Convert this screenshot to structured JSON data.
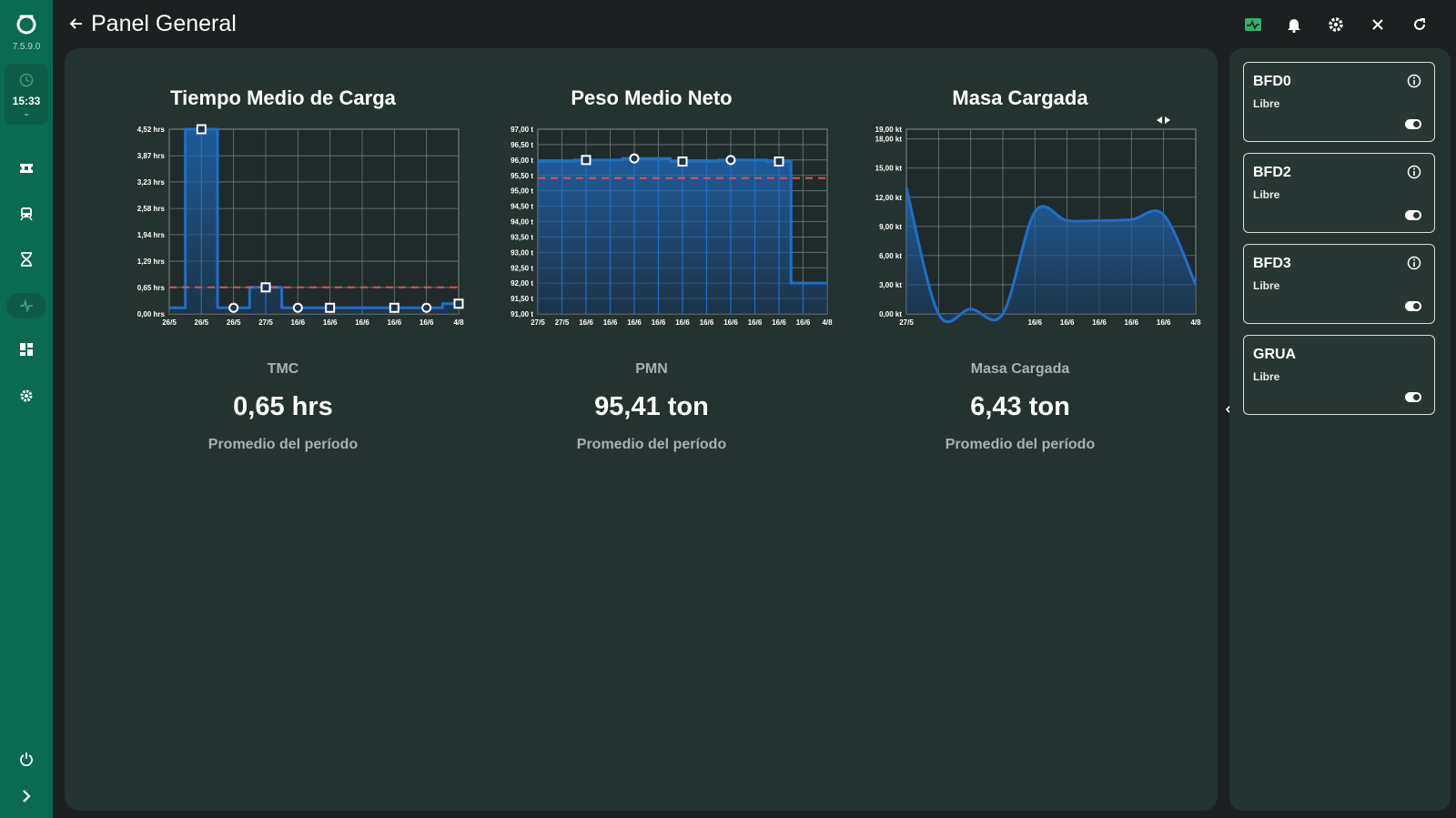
{
  "app": {
    "version": "7.5.9.0",
    "clock": "15:33"
  },
  "header": {
    "title": "Panel General"
  },
  "colors": {
    "sidebar": "#0a6b52",
    "panel": "#243230",
    "series": "#1e6fc8",
    "target": "#e05050"
  },
  "sidebar_icons": [
    "logo-icon",
    "clock-icon",
    "ticket-icon",
    "train-icon",
    "hourglass-icon",
    "activity-icon",
    "dashboard-icon",
    "settings-icon",
    "power-icon",
    "chevron-right-icon"
  ],
  "header_icons": [
    "monitor-chart-icon",
    "bell-icon",
    "settings-icon",
    "close-icon",
    "refresh-icon"
  ],
  "charts": [
    {
      "title": "Tiempo Medio de Carga",
      "kpi_label": "TMC",
      "kpi_value": "0,65 hrs",
      "kpi_sub": "Promedio del período"
    },
    {
      "title": "Peso Medio Neto",
      "kpi_label": "PMN",
      "kpi_value": "95,41 ton",
      "kpi_sub": "Promedio del período"
    },
    {
      "title": "Masa Cargada",
      "kpi_label": "Masa Cargada",
      "kpi_value": "6,43 ton",
      "kpi_sub": "Promedio del período"
    }
  ],
  "chart_data": [
    {
      "type": "area",
      "step": true,
      "title": "Tiempo Medio de Carga",
      "categories": [
        "26/5",
        "26/5",
        "26/5",
        "27/5",
        "16/6",
        "16/6",
        "16/6",
        "16/6",
        "16/6",
        "4/8"
      ],
      "values": [
        0.15,
        4.52,
        0.15,
        0.65,
        0.15,
        0.15,
        0.15,
        0.15,
        0.15,
        0.25
      ],
      "markers": [
        "",
        "square",
        "circle",
        "square",
        "circle",
        "square",
        "",
        "square",
        "circle",
        "square"
      ],
      "yticks": [
        "0,00 hrs",
        "0,65 hrs",
        "1,29 hrs",
        "1,94 hrs",
        "2,58 hrs",
        "3,23 hrs",
        "3,87 hrs",
        "4,52 hrs"
      ],
      "ylim": [
        0,
        4.52
      ],
      "target": 0.65,
      "grid": true
    },
    {
      "type": "area",
      "step": true,
      "title": "Peso Medio Neto",
      "categories": [
        "27/5",
        "27/5",
        "16/6",
        "16/6",
        "16/6",
        "16/6",
        "16/6",
        "16/6",
        "16/6",
        "16/6",
        "16/6",
        "16/6",
        "4/8"
      ],
      "values": [
        95.95,
        95.95,
        96.0,
        96.0,
        96.05,
        96.05,
        95.95,
        95.95,
        96.0,
        96.0,
        95.95,
        92.0,
        92.0
      ],
      "markers": [
        "",
        "",
        "square",
        "",
        "circle",
        "",
        "square",
        "",
        "circle",
        "",
        "square",
        "",
        ""
      ],
      "yticks": [
        "91,00 t",
        "91,50 t",
        "92,00 t",
        "92,50 t",
        "93,00 t",
        "93,50 t",
        "94,00 t",
        "94,50 t",
        "95,00 t",
        "95,50 t",
        "96,00 t",
        "96,50 t",
        "97,00 t"
      ],
      "ylim": [
        91,
        97
      ],
      "target": 95.41,
      "grid": true
    },
    {
      "type": "area",
      "step": false,
      "title": "Masa Cargada",
      "categories": [
        "27/5",
        "",
        "",
        "",
        "16/6",
        "16/6",
        "16/6",
        "16/6",
        "16/6",
        "4/8"
      ],
      "values": [
        13.0,
        0.0,
        0.5,
        0.0,
        10.5,
        9.6,
        9.6,
        9.7,
        10.2,
        3.0
      ],
      "yticks": [
        "0,00 kt",
        "3,00 kt",
        "6,00 kt",
        "9,00 kt",
        "12,00 kt",
        "15,00 kt",
        "18,00 kt",
        "19,00 kt"
      ],
      "ylim": [
        0,
        19
      ],
      "grid": true
    }
  ],
  "devices": [
    {
      "name": "BFD0",
      "status": "Libre",
      "info": true
    },
    {
      "name": "BFD2",
      "status": "Libre",
      "info": true
    },
    {
      "name": "BFD3",
      "status": "Libre",
      "info": true
    },
    {
      "name": "GRUA",
      "status": "Libre",
      "info": false
    }
  ]
}
